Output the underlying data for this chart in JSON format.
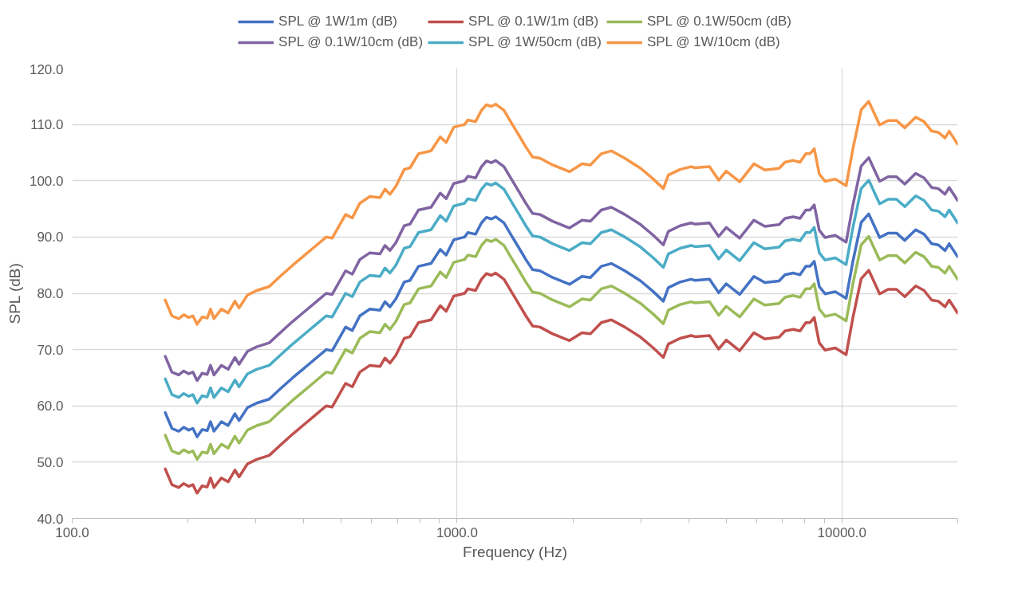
{
  "chart_data": {
    "type": "line",
    "xlabel": "Frequency (Hz)",
    "ylabel": "SPL (dB)",
    "log": "x",
    "grid": true,
    "legend": "top",
    "marker": "none",
    "line_style": "solid",
    "xlim": [
      100,
      20000
    ],
    "ylim": [
      40,
      120
    ],
    "xticks": [
      {
        "value": 100,
        "label": "100.0"
      },
      {
        "value": 200,
        "label": null
      },
      {
        "value": 300,
        "label": null
      },
      {
        "value": 400,
        "label": null
      },
      {
        "value": 500,
        "label": null
      },
      {
        "value": 600,
        "label": null
      },
      {
        "value": 700,
        "label": null
      },
      {
        "value": 800,
        "label": null
      },
      {
        "value": 900,
        "label": null
      },
      {
        "value": 1000,
        "label": "1000.0"
      },
      {
        "value": 2000,
        "label": null
      },
      {
        "value": 3000,
        "label": null
      },
      {
        "value": 4000,
        "label": null
      },
      {
        "value": 5000,
        "label": null
      },
      {
        "value": 6000,
        "label": null
      },
      {
        "value": 7000,
        "label": null
      },
      {
        "value": 8000,
        "label": null
      },
      {
        "value": 9000,
        "label": null
      },
      {
        "value": 10000,
        "label": "10000.0"
      },
      {
        "value": 20000,
        "label": null
      }
    ],
    "yticks": [
      {
        "value": 40,
        "label": "40.0"
      },
      {
        "value": 50,
        "label": "50.0"
      },
      {
        "value": 60,
        "label": "60.0"
      },
      {
        "value": 70,
        "label": "70.0"
      },
      {
        "value": 80,
        "label": "80.0"
      },
      {
        "value": 90,
        "label": "90.0"
      },
      {
        "value": 100,
        "label": "100.0"
      },
      {
        "value": 110,
        "label": "110.0"
      },
      {
        "value": 120,
        "label": "120.0"
      }
    ],
    "x": [
      174.5,
      181.6,
      189.1,
      194.9,
      200.8,
      205.9,
      211.1,
      217.6,
      224.3,
      228.8,
      233.5,
      244.2,
      254.2,
      264.7,
      271.4,
      285.4,
      301.6,
      325.1,
      347.0,
      374.1,
      397.3,
      430.5,
      457.3,
      473.6,
      513.2,
      534.3,
      558.9,
      593.5,
      630.5,
      649.7,
      669.5,
      693.4,
      729.0,
      755.1,
      794.1,
      856.0,
      904.5,
      936.9,
      980.2,
      1046,
      1067,
      1117,
      1157,
      1192,
      1228,
      1260,
      1324,
      1378,
      1450,
      1509,
      1571,
      1643,
      1772,
      1959,
      2112,
      2220,
      2370,
      2517,
      2728,
      3000,
      3235,
      3436,
      3540,
      3797,
      4054,
      4157,
      4528,
      4784,
      5006,
      5424,
      5906,
      6305,
      6866,
      7112,
      7475,
      7782,
      8060,
      8265,
      8474,
      8733,
      9043,
      9607,
      10255,
      10674,
      11222,
      11741,
      12531,
      13180,
      13860,
      14568,
      15550,
      16350,
      17110,
      17800,
      18530,
      19000,
      19980
    ],
    "series": [
      {
        "name": "SPL @ 1W/1m (dB)",
        "color": "#4472c4",
        "values": [
          58.8,
          56.0,
          55.5,
          56.2,
          55.7,
          56.0,
          54.5,
          55.8,
          55.6,
          57.2,
          55.5,
          57.2,
          56.5,
          58.6,
          57.4,
          59.7,
          60.5,
          61.2,
          63.0,
          65.0,
          66.5,
          68.5,
          70.0,
          69.8,
          74.0,
          73.4,
          76.0,
          77.2,
          77.0,
          78.5,
          77.6,
          79.0,
          82.0,
          82.3,
          84.8,
          85.3,
          87.8,
          86.8,
          89.5,
          90.0,
          90.8,
          90.5,
          92.5,
          93.5,
          93.2,
          93.6,
          92.5,
          90.5,
          88.0,
          86.0,
          84.2,
          84.0,
          82.8,
          81.6,
          83.0,
          82.8,
          84.8,
          85.3,
          84.0,
          82.2,
          80.3,
          78.6,
          81.0,
          82.0,
          82.5,
          82.3,
          82.5,
          80.1,
          81.7,
          79.8,
          83.0,
          81.9,
          82.2,
          83.3,
          83.6,
          83.3,
          84.8,
          84.8,
          85.7,
          81.2,
          79.9,
          80.3,
          79.1,
          85.6,
          92.6,
          94.1,
          89.9,
          90.7,
          90.7,
          89.4,
          91.3,
          90.5,
          88.8,
          88.6,
          87.6,
          88.8,
          86.5
        ]
      },
      {
        "name": "SPL @ 0.1W/1m (dB)",
        "color": "#c0504d",
        "values": [
          48.8,
          46.0,
          45.5,
          46.2,
          45.7,
          46.0,
          44.5,
          45.8,
          45.6,
          47.2,
          45.5,
          47.2,
          46.5,
          48.6,
          47.4,
          49.7,
          50.5,
          51.2,
          53.0,
          55.0,
          56.5,
          58.5,
          60.0,
          59.8,
          64.0,
          63.4,
          66.0,
          67.2,
          67.0,
          68.5,
          67.6,
          69.0,
          72.0,
          72.3,
          74.8,
          75.3,
          77.8,
          76.8,
          79.5,
          80.0,
          80.8,
          80.5,
          82.5,
          83.5,
          83.2,
          83.6,
          82.5,
          80.5,
          78.0,
          76.0,
          74.2,
          74.0,
          72.8,
          71.6,
          73.0,
          72.8,
          74.8,
          75.3,
          74.0,
          72.2,
          70.3,
          68.6,
          71.0,
          72.0,
          72.5,
          72.3,
          72.5,
          70.1,
          71.7,
          69.8,
          73.0,
          71.9,
          72.2,
          73.3,
          73.6,
          73.3,
          74.8,
          74.8,
          75.7,
          71.2,
          69.9,
          70.3,
          69.1,
          75.6,
          82.6,
          84.1,
          79.9,
          80.7,
          80.7,
          79.4,
          81.3,
          80.5,
          78.8,
          78.6,
          77.6,
          78.8,
          76.5
        ]
      },
      {
        "name": "SPL @ 0.1W/50cm (dB)",
        "color": "#9bbb59",
        "values": [
          54.8,
          52.0,
          51.5,
          52.2,
          51.7,
          52.0,
          50.5,
          51.8,
          51.6,
          53.2,
          51.5,
          53.2,
          52.5,
          54.6,
          53.4,
          55.7,
          56.5,
          57.2,
          59.0,
          61.0,
          62.5,
          64.5,
          66.0,
          65.8,
          70.0,
          69.4,
          72.0,
          73.2,
          73.0,
          74.5,
          73.6,
          75.0,
          78.0,
          78.3,
          80.8,
          81.3,
          83.8,
          82.8,
          85.5,
          86.0,
          86.8,
          86.5,
          88.5,
          89.5,
          89.2,
          89.6,
          88.5,
          86.5,
          84.0,
          82.0,
          80.2,
          80.0,
          78.8,
          77.6,
          79.0,
          78.8,
          80.8,
          81.3,
          80.0,
          78.2,
          76.3,
          74.6,
          77.0,
          78.0,
          78.5,
          78.3,
          78.5,
          76.1,
          77.7,
          75.8,
          79.0,
          77.9,
          78.2,
          79.3,
          79.6,
          79.3,
          80.8,
          80.8,
          81.7,
          77.2,
          75.9,
          76.3,
          75.1,
          81.6,
          88.6,
          90.1,
          85.9,
          86.7,
          86.7,
          85.4,
          87.3,
          86.5,
          84.8,
          84.6,
          83.6,
          84.8,
          82.5
        ]
      },
      {
        "name": "SPL @ 0.1W/10cm (dB)",
        "color": "#8064a2",
        "values": [
          68.8,
          66.0,
          65.5,
          66.2,
          65.7,
          66.0,
          64.5,
          65.8,
          65.6,
          67.2,
          65.5,
          67.2,
          66.5,
          68.6,
          67.4,
          69.7,
          70.5,
          71.2,
          73.0,
          75.0,
          76.5,
          78.5,
          80.0,
          79.8,
          84.0,
          83.4,
          86.0,
          87.2,
          87.0,
          88.5,
          87.6,
          89.0,
          92.0,
          92.3,
          94.8,
          95.3,
          97.8,
          96.8,
          99.5,
          100.0,
          100.8,
          100.5,
          102.5,
          103.5,
          103.2,
          103.6,
          102.5,
          100.5,
          98.0,
          96.0,
          94.2,
          94.0,
          92.8,
          91.6,
          93.0,
          92.8,
          94.8,
          95.3,
          94.0,
          92.2,
          90.3,
          88.6,
          91.0,
          92.0,
          92.5,
          92.3,
          92.5,
          90.1,
          91.7,
          89.8,
          93.0,
          91.9,
          92.2,
          93.3,
          93.6,
          93.3,
          94.8,
          94.8,
          95.7,
          91.2,
          89.9,
          90.3,
          89.1,
          95.6,
          102.6,
          104.1,
          99.9,
          100.7,
          100.7,
          99.4,
          101.3,
          100.5,
          98.8,
          98.6,
          97.6,
          98.8,
          96.5
        ]
      },
      {
        "name": "SPL @ 1W/50cm (dB)",
        "color": "#4bacc6",
        "values": [
          64.8,
          62.0,
          61.5,
          62.2,
          61.7,
          62.0,
          60.5,
          61.8,
          61.6,
          63.2,
          61.5,
          63.2,
          62.5,
          64.6,
          63.4,
          65.7,
          66.5,
          67.2,
          69.0,
          71.0,
          72.5,
          74.5,
          76.0,
          75.8,
          80.0,
          79.4,
          82.0,
          83.2,
          83.0,
          84.5,
          83.6,
          85.0,
          88.0,
          88.3,
          90.8,
          91.3,
          93.8,
          92.8,
          95.5,
          96.0,
          96.8,
          96.5,
          98.5,
          99.5,
          99.2,
          99.6,
          98.5,
          96.5,
          94.0,
          92.0,
          90.2,
          90.0,
          88.8,
          87.6,
          89.0,
          88.8,
          90.8,
          91.3,
          90.0,
          88.2,
          86.3,
          84.6,
          87.0,
          88.0,
          88.5,
          88.3,
          88.5,
          86.1,
          87.7,
          85.8,
          89.0,
          87.9,
          88.2,
          89.3,
          89.6,
          89.3,
          90.8,
          90.8,
          91.7,
          87.2,
          85.9,
          86.3,
          85.1,
          91.6,
          98.6,
          100.1,
          95.9,
          96.7,
          96.7,
          95.4,
          97.3,
          96.5,
          94.8,
          94.6,
          93.6,
          94.8,
          92.5
        ]
      },
      {
        "name": "SPL @ 1W/10cm (dB)",
        "color": "#f79646",
        "values": [
          78.8,
          76.0,
          75.5,
          76.2,
          75.7,
          76.0,
          74.5,
          75.8,
          75.6,
          77.2,
          75.5,
          77.2,
          76.5,
          78.6,
          77.4,
          79.7,
          80.5,
          81.2,
          83.0,
          85.0,
          86.5,
          88.5,
          90.0,
          89.8,
          94.0,
          93.4,
          96.0,
          97.2,
          97.0,
          98.5,
          97.6,
          99.0,
          102.0,
          102.3,
          104.8,
          105.3,
          107.8,
          106.8,
          109.5,
          110.0,
          110.8,
          110.5,
          112.5,
          113.5,
          113.2,
          113.6,
          112.5,
          110.5,
          108.0,
          106.0,
          104.2,
          104.0,
          102.8,
          101.6,
          103.0,
          102.8,
          104.8,
          105.3,
          104.0,
          102.2,
          100.3,
          98.6,
          101.0,
          102.0,
          102.5,
          102.3,
          102.5,
          100.1,
          101.7,
          99.8,
          103.0,
          101.9,
          102.2,
          103.3,
          103.6,
          103.3,
          104.8,
          104.8,
          105.7,
          101.2,
          99.9,
          100.3,
          99.1,
          105.6,
          112.6,
          114.1,
          109.9,
          110.7,
          110.7,
          109.4,
          111.3,
          110.5,
          108.8,
          108.6,
          107.6,
          108.8,
          106.5
        ]
      }
    ]
  }
}
